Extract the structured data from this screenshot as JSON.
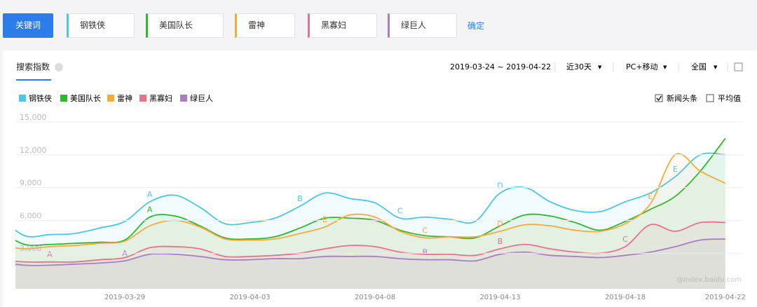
{
  "toolbar": {
    "button": "关键词",
    "keywords": [
      {
        "text": "钢铁侠",
        "color": "#4bc6e6"
      },
      {
        "text": "美国队长",
        "color": "#2eb82e"
      },
      {
        "text": "雷神",
        "color": "#f6aa3c"
      },
      {
        "text": "黑寡妇",
        "color": "#e8728b"
      },
      {
        "text": "绿巨人",
        "color": "#a77dc4"
      }
    ],
    "confirm": "确定"
  },
  "panel": {
    "tab": "搜索指数",
    "date_range": "2019-03-24 ~ 2019-04-22",
    "period": "近30天",
    "device": "PC+移动",
    "region": "全国",
    "options": [
      {
        "text": "新闻头条",
        "checked": true
      },
      {
        "text": "平均值",
        "checked": false
      }
    ],
    "watermark": "@index.baidu.com"
  },
  "chart_data": {
    "type": "line",
    "area": true,
    "grid": true,
    "categories": [
      null,
      null,
      null,
      null,
      null,
      "2019-03-29",
      null,
      null,
      null,
      null,
      "2019-04-03",
      null,
      null,
      null,
      null,
      "2019-04-08",
      null,
      null,
      null,
      null,
      "2019-04-13",
      null,
      null,
      null,
      null,
      "2019-04-18",
      null,
      null,
      null,
      "2019-04-22"
    ],
    "ylim": [
      0,
      15000
    ],
    "yticks": [
      {
        "value": 3000,
        "label": "3,000"
      },
      {
        "value": 6000,
        "label": "6,000"
      },
      {
        "value": 9000,
        "label": "9,000"
      },
      {
        "value": 12000,
        "label": "12,000"
      },
      {
        "value": 15000,
        "label": "15,000"
      }
    ],
    "series": [
      {
        "name": "钢铁侠",
        "color": "#4bc6e6",
        "values": [
          6300,
          4600,
          4700,
          4800,
          5300,
          5900,
          7700,
          8300,
          7200,
          5700,
          5800,
          6200,
          7300,
          8500,
          8000,
          7600,
          6200,
          6300,
          6100,
          5900,
          8500,
          9000,
          7700,
          6900,
          6800,
          7700,
          8500,
          10000,
          12000,
          12000
        ],
        "annotations": [
          {
            "text": "A",
            "index": 6
          },
          {
            "text": "B",
            "index": 12
          },
          {
            "text": "C",
            "index": 16
          },
          {
            "text": "D",
            "index": 20
          },
          {
            "text": "E",
            "index": 27
          }
        ]
      },
      {
        "name": "美国队长",
        "color": "#2eb82e",
        "values": [
          5000,
          3800,
          3800,
          3900,
          4000,
          4200,
          6300,
          6400,
          5500,
          4400,
          4300,
          4500,
          5300,
          6200,
          6200,
          6000,
          5100,
          4600,
          4500,
          4400,
          5500,
          6500,
          6400,
          5800,
          5100,
          5900,
          7000,
          8200,
          10500,
          13500
        ],
        "annotations": [
          {
            "text": "A",
            "index": 6
          }
        ]
      },
      {
        "name": "雷神",
        "color": "#f6aa3c",
        "values": [
          3700,
          3400,
          3600,
          3700,
          3900,
          4100,
          5500,
          6000,
          5400,
          4300,
          4200,
          4300,
          4800,
          5400,
          6500,
          6300,
          5000,
          4400,
          4500,
          4500,
          5000,
          5600,
          5500,
          5100,
          5000,
          5700,
          7500,
          12000,
          10500,
          9400
        ],
        "annotations": [
          {
            "text": "B",
            "index": 13
          },
          {
            "text": "C",
            "index": 17
          },
          {
            "text": "D",
            "index": 20
          },
          {
            "text": "E",
            "index": 26
          }
        ]
      },
      {
        "name": "黑寡妇",
        "color": "#e8728b",
        "values": [
          2400,
          2200,
          2200,
          2200,
          2400,
          2600,
          3500,
          3600,
          3400,
          2700,
          2700,
          2800,
          3000,
          3400,
          3700,
          3600,
          3100,
          2900,
          2900,
          2800,
          3400,
          3800,
          3400,
          3100,
          3000,
          3600,
          5600,
          5000,
          5800,
          5800
        ],
        "annotations": [
          {
            "text": "A",
            "index": 2
          },
          {
            "text": "B",
            "index": 20
          },
          {
            "text": "C",
            "index": 25
          }
        ]
      },
      {
        "name": "绿巨人",
        "color": "#a77dc4",
        "values": [
          2200,
          1900,
          1900,
          2000,
          2100,
          2300,
          2900,
          2900,
          2700,
          2400,
          2400,
          2500,
          2500,
          2700,
          2700,
          2700,
          2500,
          2400,
          2400,
          2300,
          2900,
          3100,
          2800,
          2700,
          2600,
          2800,
          3100,
          3600,
          4200,
          4300
        ],
        "annotations": [
          {
            "text": "A",
            "index": 5
          },
          {
            "text": "B",
            "index": 17
          }
        ]
      }
    ]
  }
}
